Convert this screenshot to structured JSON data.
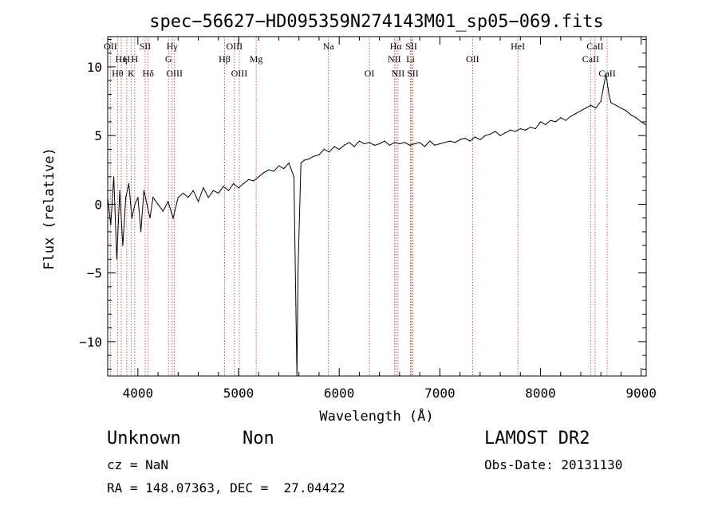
{
  "chart_data": {
    "type": "line",
    "title": "spec−56627−HD095359N274143M01_sp05−069.fits",
    "xlabel": "Wavelength (Å)",
    "ylabel": "Flux (relative)",
    "xlim": [
      3700,
      9050
    ],
    "ylim": [
      -12.5,
      12.2
    ],
    "xticks": [
      4000,
      5000,
      6000,
      7000,
      8000,
      9000
    ],
    "yticks": [
      -10,
      -5,
      0,
      5,
      10
    ],
    "grid": false,
    "series": [
      {
        "x": [
          3700,
          3730,
          3760,
          3790,
          3820,
          3850,
          3880,
          3910,
          3940,
          3970,
          4000,
          4030,
          4060,
          4090,
          4120,
          4150,
          4200,
          4250,
          4300,
          4350,
          4400,
          4450,
          4500,
          4550,
          4600,
          4650,
          4700,
          4750,
          4800,
          4850,
          4900,
          4950,
          5000,
          5050,
          5100,
          5150,
          5200,
          5250,
          5300,
          5350,
          5400,
          5450,
          5500,
          5550,
          5580,
          5590,
          5620,
          5650,
          5700,
          5750,
          5800,
          5850,
          5900,
          5950,
          6000,
          6050,
          6100,
          6150,
          6200,
          6250,
          6300,
          6350,
          6400,
          6450,
          6500,
          6550,
          6600,
          6650,
          6700,
          6750,
          6800,
          6850,
          6900,
          6950,
          7000,
          7050,
          7100,
          7150,
          7200,
          7250,
          7300,
          7350,
          7400,
          7450,
          7500,
          7550,
          7600,
          7650,
          7700,
          7750,
          7800,
          7850,
          7900,
          7950,
          8000,
          8050,
          8100,
          8150,
          8200,
          8250,
          8300,
          8350,
          8400,
          8450,
          8500,
          8550,
          8600,
          8650,
          8680,
          8700,
          8750,
          8800,
          8850,
          8900,
          8950,
          9000,
          9040
        ],
        "y": [
          0.5,
          -1.5,
          2.0,
          -4.0,
          1.0,
          -3.0,
          0.5,
          1.5,
          -1.0,
          0.0,
          0.5,
          -2.0,
          1.0,
          0.0,
          -1.0,
          0.5,
          0.0,
          -0.5,
          0.2,
          -1.0,
          0.5,
          0.8,
          0.5,
          1.0,
          0.2,
          1.2,
          0.5,
          1.0,
          0.8,
          1.3,
          1.0,
          1.5,
          1.2,
          1.5,
          1.8,
          1.7,
          2.0,
          2.3,
          2.5,
          2.4,
          2.8,
          2.6,
          3.0,
          2.0,
          -12.5,
          -5.0,
          3.0,
          3.2,
          3.3,
          3.5,
          3.6,
          4.0,
          3.8,
          4.2,
          4.0,
          4.3,
          4.5,
          4.2,
          4.6,
          4.4,
          4.5,
          4.3,
          4.4,
          4.6,
          4.3,
          4.5,
          4.4,
          4.5,
          4.3,
          4.4,
          4.5,
          4.2,
          4.6,
          4.3,
          4.4,
          4.5,
          4.6,
          4.5,
          4.7,
          4.8,
          4.6,
          4.9,
          4.7,
          5.0,
          5.1,
          5.3,
          5.0,
          5.2,
          5.4,
          5.3,
          5.5,
          5.4,
          5.6,
          5.5,
          6.0,
          5.8,
          6.1,
          6.0,
          6.3,
          6.1,
          6.4,
          6.6,
          6.8,
          7.0,
          7.2,
          7.0,
          7.5,
          9.5,
          8.0,
          7.4,
          7.2,
          7.0,
          6.8,
          6.5,
          6.3,
          6.0,
          5.8
        ]
      }
    ],
    "lines": [
      {
        "label": "OII",
        "x": 3727,
        "row": 0
      },
      {
        "label": "Hη",
        "x": 3835,
        "row": 1
      },
      {
        "label": "H",
        "x": 3889,
        "row": 1
      },
      {
        "label": "Hθ",
        "x": 3798,
        "row": 2
      },
      {
        "label": "K",
        "x": 3934,
        "row": 2
      },
      {
        "label": "H",
        "x": 3968,
        "row": 1
      },
      {
        "label": "SII",
        "x": 4072,
        "row": 0
      },
      {
        "label": "Hδ",
        "x": 4102,
        "row": 2
      },
      {
        "label": "Hγ",
        "x": 4340,
        "row": 0
      },
      {
        "label": "G",
        "x": 4304,
        "row": 1
      },
      {
        "label": "OIII",
        "x": 4363,
        "row": 2
      },
      {
        "label": "Hβ",
        "x": 4861,
        "row": 1
      },
      {
        "label": "OIII",
        "x": 4959,
        "row": 0
      },
      {
        "label": "OIII",
        "x": 5007,
        "row": 2
      },
      {
        "label": "Mg",
        "x": 5175,
        "row": 1
      },
      {
        "label": "Na",
        "x": 5893,
        "row": 0
      },
      {
        "label": "OI",
        "x": 6300,
        "row": 2
      },
      {
        "label": "Hα",
        "x": 6563,
        "row": 0
      },
      {
        "label": "SII",
        "x": 6716,
        "row": 0
      },
      {
        "label": "NII",
        "x": 6548,
        "row": 1
      },
      {
        "label": "Li",
        "x": 6708,
        "row": 1
      },
      {
        "label": "NII",
        "x": 6584,
        "row": 2
      },
      {
        "label": "SII",
        "x": 6731,
        "row": 2
      },
      {
        "label": "OII",
        "x": 7325,
        "row": 1
      },
      {
        "label": "HeI",
        "x": 7775,
        "row": 0
      },
      {
        "label": "CaII",
        "x": 8542,
        "row": 0
      },
      {
        "label": "CaII",
        "x": 8498,
        "row": 1
      },
      {
        "label": "CaII",
        "x": 8662,
        "row": 2
      }
    ],
    "colors": {
      "line": "#000000",
      "markers": "#b03030"
    }
  },
  "info": {
    "class_text": "Unknown",
    "subclass_text": "Non",
    "cz_text": "cz = NaN",
    "coords_text": "RA = 148.07363, DEC =  27.04422",
    "survey_text": "LAMOST DR2",
    "obsdate_text": "Obs-Date: 20131130"
  }
}
